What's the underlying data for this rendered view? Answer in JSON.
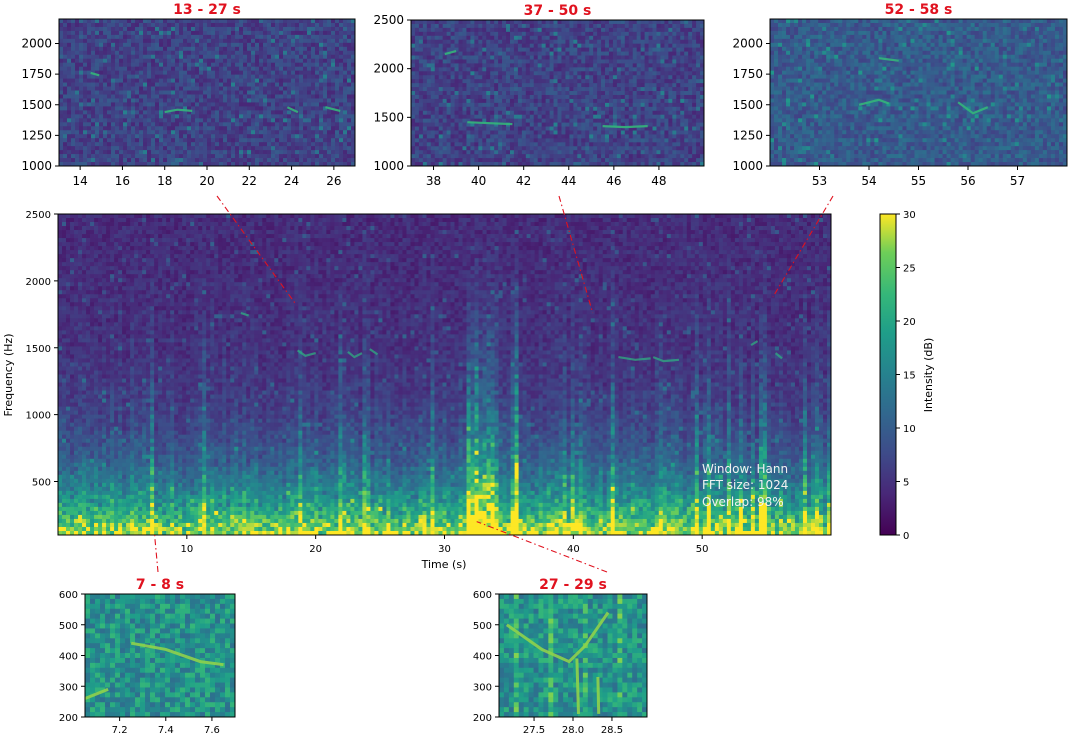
{
  "chart_data": [
    {
      "type": "heatmap",
      "role": "main-spectrogram",
      "xlabel": "Time (s)",
      "ylabel": "Frequency (Hz)",
      "xlim": [
        0,
        60
      ],
      "ylim": [
        100,
        2500
      ],
      "xticks": [
        10,
        20,
        30,
        40,
        50
      ],
      "yticks": [
        500,
        1000,
        1500,
        2000,
        2500
      ],
      "colormap": "viridis",
      "colorbar": {
        "label": "Intensity (dB)",
        "range": [
          0,
          30
        ],
        "ticks": [
          0,
          5,
          10,
          15,
          20,
          25,
          30
        ]
      },
      "annotations": [
        "Window: Hann",
        "FFT size: 1024",
        "Overlap: 98%"
      ]
    },
    {
      "type": "heatmap",
      "role": "zoom",
      "title": "13 - 27 s",
      "xlim": [
        13,
        27
      ],
      "ylim": [
        1000,
        2200
      ],
      "xticks": [
        14,
        16,
        18,
        20,
        22,
        24,
        26
      ],
      "yticks": [
        1000,
        1250,
        1500,
        1750,
        2000
      ],
      "anchor": {
        "t": 18.5,
        "f": 1820
      }
    },
    {
      "type": "heatmap",
      "role": "zoom",
      "title": "37 - 50 s",
      "xlim": [
        37,
        50
      ],
      "ylim": [
        1000,
        2500
      ],
      "xticks": [
        38,
        40,
        42,
        44,
        46,
        48
      ],
      "yticks": [
        1000,
        1500,
        2000,
        2500
      ],
      "anchor": {
        "t": 41.5,
        "f": 1760
      }
    },
    {
      "type": "heatmap",
      "role": "zoom",
      "title": "52 - 58 s",
      "xlim": [
        52,
        58
      ],
      "ylim": [
        1000,
        2200
      ],
      "xticks": [
        53,
        54,
        55,
        56,
        57
      ],
      "yticks": [
        1000,
        1250,
        1500,
        1750,
        2000
      ],
      "anchor": {
        "t": 55.5,
        "f": 1880
      }
    },
    {
      "type": "heatmap",
      "role": "zoom",
      "title": "7 - 8 s",
      "xlim": [
        7.05,
        7.7
      ],
      "ylim": [
        200,
        600
      ],
      "xticks": [
        7.2,
        7.4,
        7.6
      ],
      "yticks": [
        200,
        300,
        400,
        500,
        600
      ],
      "anchor": {
        "t": 7.5,
        "f": 100
      }
    },
    {
      "type": "heatmap",
      "role": "zoom",
      "title": "27 - 29 s",
      "xlim": [
        27.05,
        28.95
      ],
      "ylim": [
        200,
        600
      ],
      "xticks": [
        27.5,
        28.0,
        28.5
      ],
      "yticks": [
        200,
        300,
        400,
        500,
        600
      ],
      "anchor": {
        "t": 32.5,
        "f": 200
      }
    }
  ]
}
